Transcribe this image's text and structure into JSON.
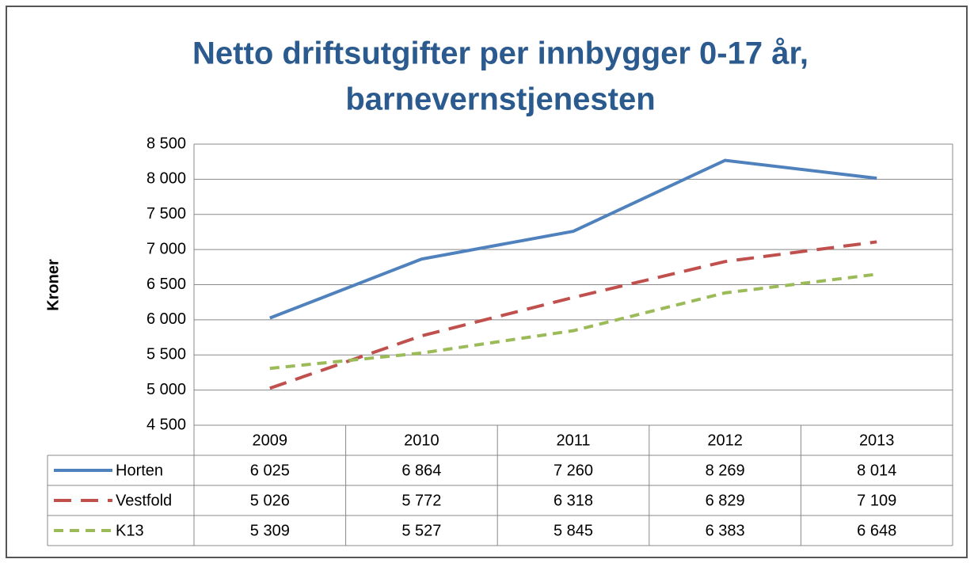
{
  "chart_data": {
    "type": "line",
    "title": [
      "Netto driftsutgifter  per innbygger 0-17 år,",
      "barnevernstjenesten"
    ],
    "ylabel": "Kroner",
    "categories": [
      "2009",
      "2010",
      "2011",
      "2012",
      "2013"
    ],
    "series": [
      {
        "name": "Horten",
        "color": "#4f81bd",
        "dash": "solid",
        "values": [
          6025,
          6864,
          7260,
          8269,
          8014
        ],
        "value_labels": [
          "6 025",
          "6 864",
          "7 260",
          "8 269",
          "8 014"
        ]
      },
      {
        "name": "Vestfold",
        "color": "#c0504d",
        "dash": "dash",
        "values": [
          5026,
          5772,
          6318,
          6829,
          7109
        ],
        "value_labels": [
          "5 026",
          "5 772",
          "6 318",
          "6 829",
          "7 109"
        ]
      },
      {
        "name": "K13",
        "color": "#9bbb59",
        "dash": "short-dash",
        "values": [
          5309,
          5527,
          5845,
          6383,
          6648
        ],
        "value_labels": [
          "5 309",
          "5 527",
          "5 845",
          "6 383",
          "6 648"
        ]
      }
    ],
    "ylim": [
      4500,
      8500
    ],
    "yticks": [
      {
        "value": 4500,
        "label": "4 500"
      },
      {
        "value": 5000,
        "label": "5 000"
      },
      {
        "value": 5500,
        "label": "5 500"
      },
      {
        "value": 6000,
        "label": "6 000"
      },
      {
        "value": 6500,
        "label": "6 500"
      },
      {
        "value": 7000,
        "label": "7 000"
      },
      {
        "value": 7500,
        "label": "7 500"
      },
      {
        "value": 8000,
        "label": "8 000"
      },
      {
        "value": 8500,
        "label": "8 500"
      }
    ],
    "grid": true
  }
}
